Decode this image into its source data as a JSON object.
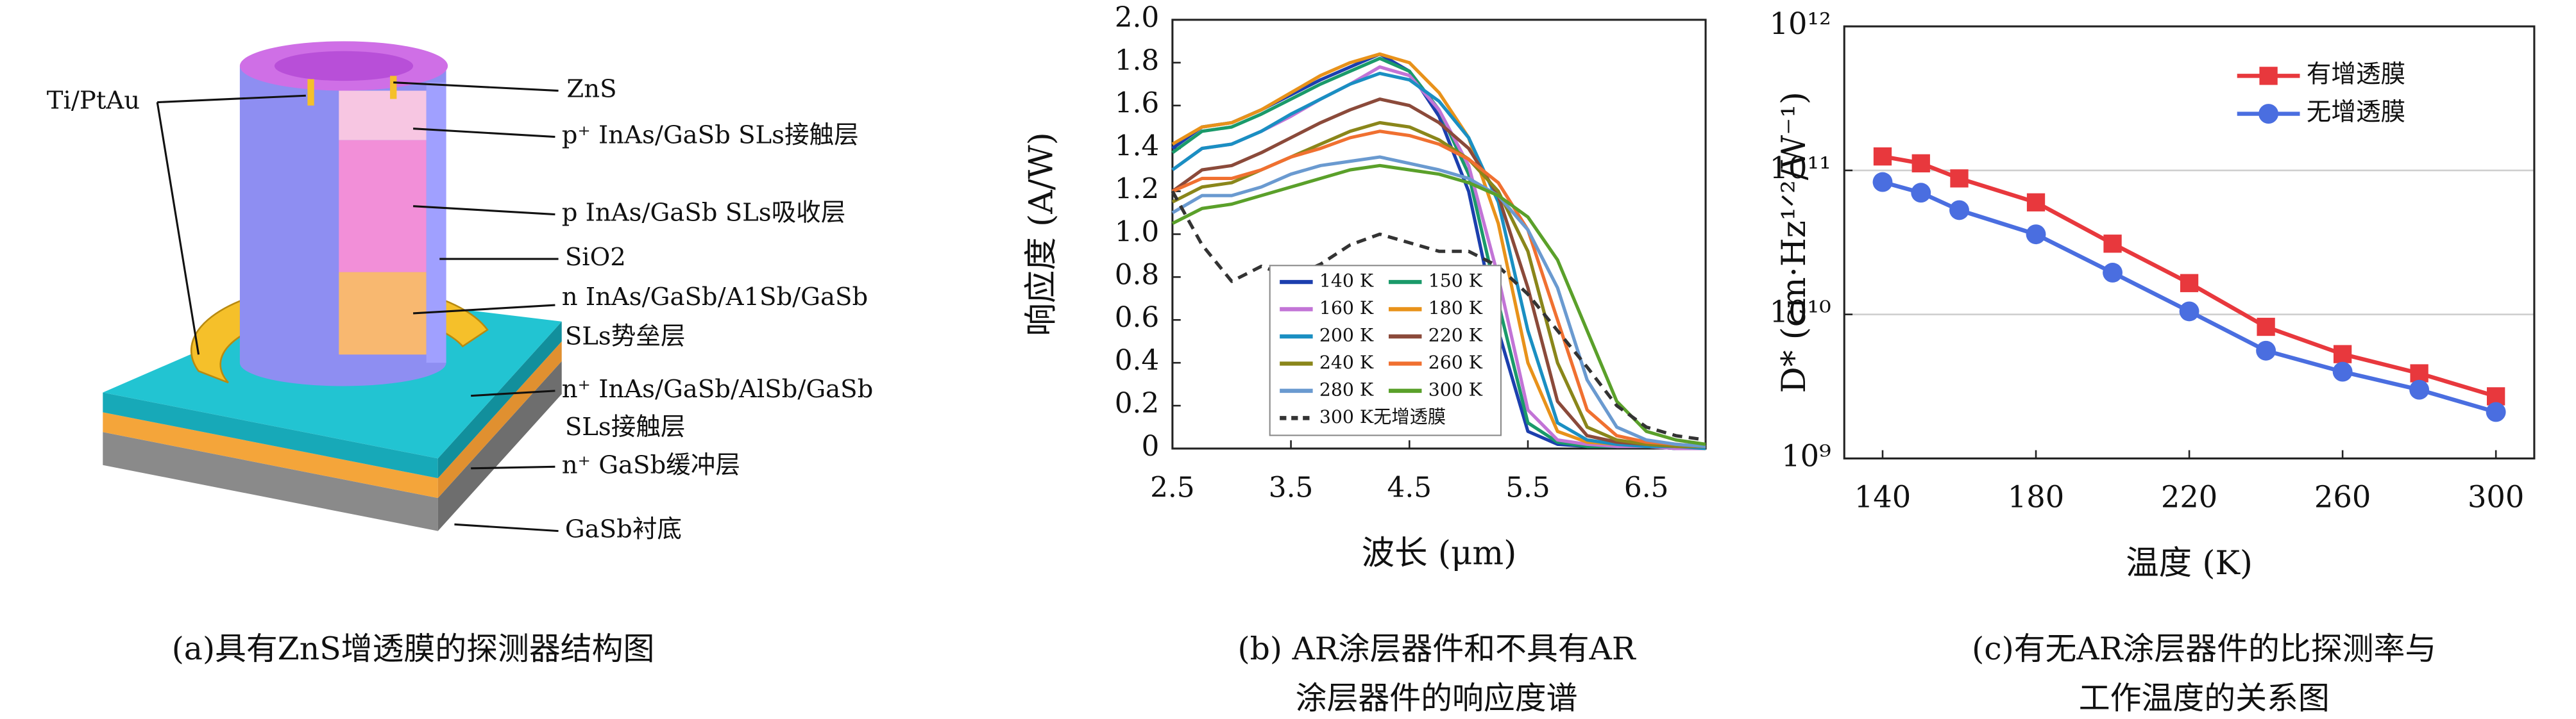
{
  "diagram": {
    "labels": [
      "Ti/PtAu",
      "ZnS",
      "p⁺ InAs/GaSb SLs接触层",
      "p InAs/GaSb SLs吸收层",
      "SiO2",
      "n InAs/GaSb/A1Sb/GaSb",
      "SLs势垒层",
      "n⁺ InAs/GaSb/AlSb/GaSb",
      "SLs接触层",
      "n⁺ GaSb缓冲层",
      "GaSb衬底"
    ],
    "caption": "(a)具有ZnS增透膜的探测器结构图"
  },
  "chart_data": [
    {
      "type": "line",
      "xlabel": "波长 (μm)",
      "ylabel": "响应度 (A/W)",
      "caption": [
        "(b) AR涂层器件和不具有AR",
        "涂层器件的响应度谱"
      ],
      "x": [
        2.5,
        2.75,
        3.0,
        3.25,
        3.5,
        3.75,
        4.0,
        4.25,
        4.5,
        4.75,
        5.0,
        5.25,
        5.5,
        5.75,
        6.0,
        6.25,
        6.5,
        6.75,
        7.0
      ],
      "xlim": [
        2.5,
        7.0
      ],
      "xticks": [
        2.5,
        3.5,
        4.5,
        5.5,
        6.5
      ],
      "ylim": [
        0,
        2
      ],
      "yticks": [
        0,
        0.2,
        0.4,
        0.6,
        0.8,
        {
          "value": 1,
          "label": "1.0"
        },
        1.2,
        1.4,
        1.6,
        1.8,
        {
          "value": 2,
          "label": "2.0"
        }
      ],
      "legend": "lower left",
      "legend_box": true,
      "series": [
        {
          "name": "140 K",
          "color": "#1c3fae",
          "values": [
            1.4,
            1.5,
            1.52,
            1.58,
            1.65,
            1.72,
            1.78,
            1.84,
            1.76,
            1.55,
            1.2,
            0.55,
            0.08,
            0.02,
            0.01,
            0.01,
            0.01,
            0.0,
            0.0
          ]
        },
        {
          "name": "150 K",
          "color": "#1a9a6a",
          "values": [
            1.38,
            1.48,
            1.5,
            1.56,
            1.63,
            1.7,
            1.76,
            1.82,
            1.76,
            1.58,
            1.28,
            0.68,
            0.12,
            0.03,
            0.01,
            0.01,
            0.01,
            0.0,
            0.0
          ]
        },
        {
          "name": "160 K",
          "color": "#c274d6",
          "values": [
            1.3,
            1.4,
            1.42,
            1.48,
            1.55,
            1.63,
            1.7,
            1.78,
            1.74,
            1.58,
            1.32,
            0.8,
            0.18,
            0.04,
            0.02,
            0.01,
            0.01,
            0.0,
            0.0
          ]
        },
        {
          "name": "180 K",
          "color": "#e8921a",
          "values": [
            1.42,
            1.5,
            1.52,
            1.58,
            1.66,
            1.74,
            1.8,
            1.84,
            1.8,
            1.66,
            1.45,
            1.05,
            0.4,
            0.08,
            0.03,
            0.02,
            0.01,
            0.01,
            0.0
          ]
        },
        {
          "name": "200 K",
          "color": "#1a8fc2",
          "values": [
            1.3,
            1.4,
            1.42,
            1.48,
            1.56,
            1.63,
            1.7,
            1.75,
            1.72,
            1.62,
            1.45,
            1.15,
            0.55,
            0.12,
            0.04,
            0.02,
            0.01,
            0.01,
            0.0
          ]
        },
        {
          "name": "220 K",
          "color": "#8b4a3a",
          "values": [
            1.2,
            1.3,
            1.32,
            1.38,
            1.45,
            1.52,
            1.58,
            1.63,
            1.6,
            1.52,
            1.4,
            1.18,
            0.75,
            0.22,
            0.06,
            0.03,
            0.02,
            0.01,
            0.01
          ]
        },
        {
          "name": "240 K",
          "color": "#8a861a",
          "values": [
            1.15,
            1.22,
            1.24,
            1.3,
            1.36,
            1.42,
            1.48,
            1.52,
            1.5,
            1.44,
            1.35,
            1.2,
            0.92,
            0.4,
            0.1,
            0.04,
            0.02,
            0.01,
            0.01
          ]
        },
        {
          "name": "260 K",
          "color": "#f07030",
          "values": [
            1.2,
            1.26,
            1.26,
            1.3,
            1.36,
            1.4,
            1.45,
            1.48,
            1.46,
            1.42,
            1.35,
            1.24,
            1.02,
            0.6,
            0.18,
            0.06,
            0.03,
            0.02,
            0.01
          ]
        },
        {
          "name": "280 K",
          "color": "#6a9ad0",
          "values": [
            1.1,
            1.18,
            1.18,
            1.22,
            1.28,
            1.32,
            1.34,
            1.36,
            1.33,
            1.3,
            1.26,
            1.18,
            1.02,
            0.75,
            0.32,
            0.1,
            0.04,
            0.02,
            0.01
          ]
        },
        {
          "name": "300 K",
          "color": "#5aa02a",
          "values": [
            1.05,
            1.12,
            1.14,
            1.18,
            1.22,
            1.26,
            1.3,
            1.32,
            1.3,
            1.28,
            1.24,
            1.18,
            1.08,
            0.88,
            0.55,
            0.22,
            0.08,
            0.04,
            0.02
          ]
        },
        {
          "name": "300 K无增透膜",
          "color": "#333333",
          "linestyle": "dashed",
          "values": [
            1.2,
            0.95,
            0.78,
            0.85,
            0.8,
            0.86,
            0.95,
            1.0,
            0.96,
            0.92,
            0.92,
            0.85,
            0.72,
            0.55,
            0.38,
            0.2,
            0.1,
            0.06,
            0.04
          ]
        }
      ]
    },
    {
      "type": "line",
      "xlabel": "温度 (K)",
      "ylabel": "D* (cm·Hz¹ᐟ²/W⁻¹)",
      "caption": [
        "(c)有无AR涂层器件的比探测率与",
        "工作温度的关系图"
      ],
      "x": [
        140,
        150,
        160,
        180,
        200,
        220,
        240,
        260,
        280,
        300
      ],
      "xlim": [
        130,
        310
      ],
      "xticks": [
        140,
        180,
        220,
        260,
        300
      ],
      "log_scale": "y",
      "grid": true,
      "ylim": [
        1000000000,
        1000000000000
      ],
      "yticks": [
        {
          "value": 1000000000,
          "label": "10⁹"
        },
        {
          "value": 10000000000,
          "label": "10¹⁰"
        },
        {
          "value": 100000000000,
          "label": "10¹¹"
        },
        {
          "value": 1000000000000,
          "label": "10¹²"
        }
      ],
      "legend": "upper right",
      "legend_box": false,
      "series": [
        {
          "name": "有增透膜",
          "color": "#e8383d",
          "marker": "square",
          "values": [
            125000000000,
            112000000000,
            88000000000,
            60000000000,
            31000000000,
            16500000000,
            8200000000,
            5300000000,
            3900000000,
            2700000000
          ]
        },
        {
          "name": "无增透膜",
          "color": "#4a6ee0",
          "marker": "circle",
          "values": [
            83000000000,
            70000000000,
            53000000000,
            36000000000,
            19500000000,
            10500000000,
            5600000000,
            4000000000,
            3000000000,
            2100000000
          ]
        }
      ]
    }
  ]
}
